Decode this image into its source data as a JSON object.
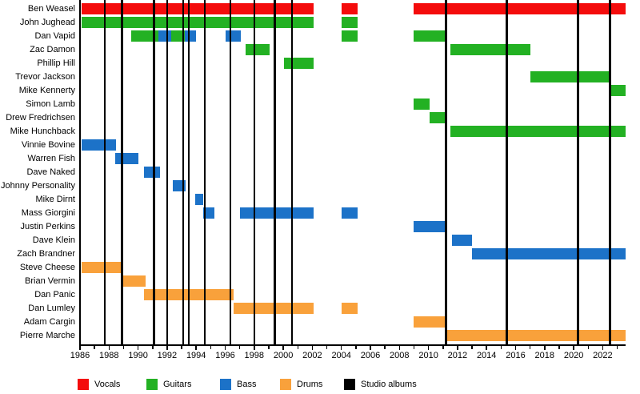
{
  "chart_data": {
    "type": "timeline",
    "description": "Band members timeline with studio album release markers",
    "x_axis": {
      "start": 1986,
      "end": 2023.6,
      "label_step": 2,
      "labels": [
        1986,
        1988,
        1990,
        1992,
        1994,
        1996,
        1998,
        2000,
        2002,
        2004,
        2006,
        2008,
        2010,
        2012,
        2014,
        2016,
        2018,
        2020,
        2022
      ]
    },
    "roles": {
      "vocals": "#F40C0C",
      "guitars": "#23B123",
      "bass": "#1C72C8",
      "drums": "#F9A13B"
    },
    "album_line_color": "#000000",
    "album_lines": [
      1987.7,
      1988.9,
      1991.1,
      1992.0,
      1993.1,
      1993.5,
      1994.6,
      1996.35,
      1998.0,
      1999.4,
      2000.6,
      2011.2,
      2015.4,
      2020.3,
      2022.5
    ],
    "members": [
      {
        "name": "Ben Weasel",
        "segments": [
          {
            "role": "vocals",
            "from": 1986.1,
            "to": 2002.1
          },
          {
            "role": "vocals",
            "from": 2004.0,
            "to": 2005.1
          },
          {
            "role": "vocals",
            "from": 2009.0,
            "to": 2023.6
          }
        ]
      },
      {
        "name": "John Jughead",
        "segments": [
          {
            "role": "guitars",
            "from": 1986.1,
            "to": 2002.1
          },
          {
            "role": "guitars",
            "from": 2004.0,
            "to": 2005.1
          }
        ]
      },
      {
        "name": "Dan Vapid",
        "segments": [
          {
            "role": "guitars",
            "from": 1989.5,
            "to": 1991.4
          },
          {
            "role": "bass",
            "from": 1991.4,
            "to": 1992.3
          },
          {
            "role": "guitars",
            "from": 1992.3,
            "to": 1993.2
          },
          {
            "role": "bass",
            "from": 1993.2,
            "to": 1994.0
          },
          {
            "role": "bass",
            "from": 1996.0,
            "to": 1997.1
          },
          {
            "role": "guitars",
            "from": 2004.0,
            "to": 2005.1
          },
          {
            "role": "guitars",
            "from": 2009.0,
            "to": 2011.25
          }
        ]
      },
      {
        "name": "Zac Damon",
        "segments": [
          {
            "role": "guitars",
            "from": 1997.4,
            "to": 1999.05
          },
          {
            "role": "guitars",
            "from": 2011.5,
            "to": 2017.0
          }
        ]
      },
      {
        "name": "Phillip Hill",
        "segments": [
          {
            "role": "guitars",
            "from": 2000.05,
            "to": 2002.1
          }
        ]
      },
      {
        "name": "Trevor Jackson",
        "segments": [
          {
            "role": "guitars",
            "from": 2017.0,
            "to": 2022.6
          }
        ]
      },
      {
        "name": "Mike Kennerty",
        "segments": [
          {
            "role": "guitars",
            "from": 2022.6,
            "to": 2023.6
          }
        ]
      },
      {
        "name": "Simon Lamb",
        "segments": [
          {
            "role": "guitars",
            "from": 2009.0,
            "to": 2010.1
          }
        ]
      },
      {
        "name": "Drew Fredrichsen",
        "segments": [
          {
            "role": "guitars",
            "from": 2010.1,
            "to": 2011.25
          }
        ]
      },
      {
        "name": "Mike Hunchback",
        "segments": [
          {
            "role": "guitars",
            "from": 2011.5,
            "to": 2023.6
          }
        ]
      },
      {
        "name": "Vinnie Bovine",
        "segments": [
          {
            "role": "bass",
            "from": 1986.1,
            "to": 1988.5
          }
        ]
      },
      {
        "name": "Warren Fish",
        "segments": [
          {
            "role": "bass",
            "from": 1988.4,
            "to": 1990.0
          }
        ]
      },
      {
        "name": "Dave Naked",
        "segments": [
          {
            "role": "bass",
            "from": 1990.4,
            "to": 1991.5
          }
        ]
      },
      {
        "name": "Johnny Personality",
        "segments": [
          {
            "role": "bass",
            "from": 1992.4,
            "to": 1993.25
          }
        ]
      },
      {
        "name": "Mike Dirnt",
        "segments": [
          {
            "role": "bass",
            "from": 1993.95,
            "to": 1994.5
          }
        ]
      },
      {
        "name": "Mass Giorgini",
        "segments": [
          {
            "role": "bass",
            "from": 1994.5,
            "to": 1995.25
          },
          {
            "role": "bass",
            "from": 1997.0,
            "to": 2002.1
          },
          {
            "role": "bass",
            "from": 2004.0,
            "to": 2005.1
          }
        ]
      },
      {
        "name": "Justin Perkins",
        "segments": [
          {
            "role": "bass",
            "from": 2009.0,
            "to": 2011.1
          }
        ]
      },
      {
        "name": "Dave Klein",
        "segments": [
          {
            "role": "bass",
            "from": 2011.6,
            "to": 2013.0
          }
        ]
      },
      {
        "name": "Zach Brandner",
        "segments": [
          {
            "role": "bass",
            "from": 2013.0,
            "to": 2023.6
          }
        ]
      },
      {
        "name": "Steve Cheese",
        "segments": [
          {
            "role": "drums",
            "from": 1986.1,
            "to": 1989.0
          }
        ]
      },
      {
        "name": "Brian Vermin",
        "segments": [
          {
            "role": "drums",
            "from": 1988.9,
            "to": 1990.5
          }
        ]
      },
      {
        "name": "Dan Panic",
        "segments": [
          {
            "role": "drums",
            "from": 1990.4,
            "to": 1996.6
          }
        ]
      },
      {
        "name": "Dan Lumley",
        "segments": [
          {
            "role": "drums",
            "from": 1996.6,
            "to": 2002.1
          },
          {
            "role": "drums",
            "from": 2004.0,
            "to": 2005.1
          }
        ]
      },
      {
        "name": "Adam Cargin",
        "segments": [
          {
            "role": "drums",
            "from": 2009.0,
            "to": 2011.2
          }
        ]
      },
      {
        "name": "Pierre Marche",
        "segments": [
          {
            "role": "drums",
            "from": 2011.3,
            "to": 2023.6
          }
        ]
      }
    ],
    "legend": [
      {
        "label": "Vocals",
        "role": "vocals"
      },
      {
        "label": "Guitars",
        "role": "guitars"
      },
      {
        "label": "Bass",
        "role": "bass"
      },
      {
        "label": "Drums",
        "role": "drums"
      },
      {
        "label": "Studio albums",
        "role": "albums"
      }
    ]
  }
}
